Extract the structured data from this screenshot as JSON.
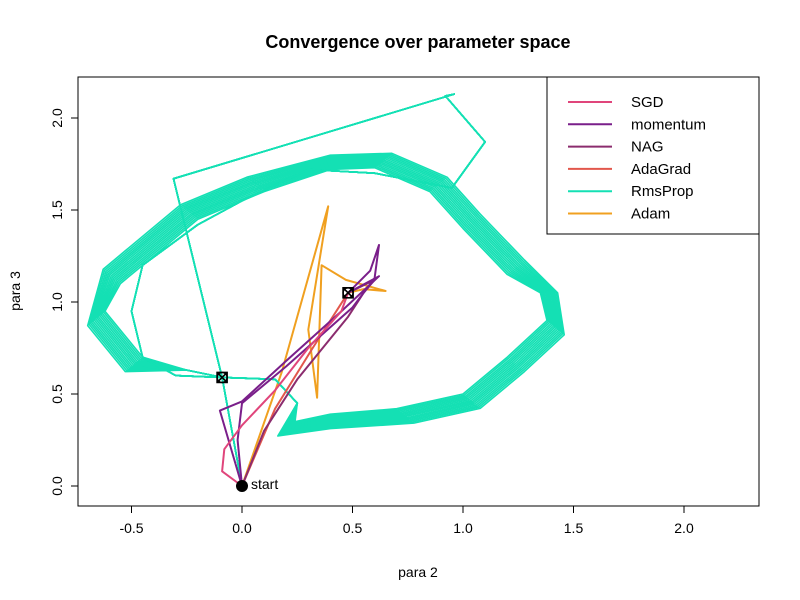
{
  "chart_data": {
    "type": "line",
    "title": "Convergence over parameter space",
    "xlabel": "para 2",
    "ylabel": "para 3",
    "xlim": [
      -0.75,
      2.34
    ],
    "ylim": [
      -0.09,
      2.27
    ],
    "x_ticks": [
      "-0.5",
      "0.0",
      "0.5",
      "1.0",
      "1.5",
      "2.0"
    ],
    "y_ticks": [
      "0.0",
      "0.5",
      "1.0",
      "1.5",
      "2.0"
    ],
    "legend_position": "top-right",
    "start_label": "start",
    "start_point": [
      0.0,
      0.0
    ],
    "markers": [
      [
        -0.09,
        0.59
      ],
      [
        0.48,
        1.05
      ]
    ],
    "series": [
      {
        "name": "SGD",
        "color": "#E0457B",
        "x": [
          0.0,
          -0.09,
          -0.08,
          0.0,
          0.15,
          0.3,
          0.45,
          0.48
        ],
        "y": [
          0.0,
          0.08,
          0.2,
          0.33,
          0.52,
          0.75,
          0.95,
          1.05
        ]
      },
      {
        "name": "momentum",
        "color": "#7A1F8A",
        "x": [
          0.0,
          -0.02,
          0.0,
          0.2,
          0.5,
          0.6,
          0.62,
          0.58,
          0.48
        ],
        "y": [
          0.0,
          0.25,
          0.45,
          0.65,
          0.97,
          1.13,
          1.31,
          1.17,
          1.05
        ],
        "x2": [
          0.0,
          -0.1,
          0.0,
          0.2,
          0.45,
          0.62,
          0.48
        ],
        "y2": [
          0.0,
          0.41,
          0.46,
          0.68,
          0.95,
          1.14,
          1.05
        ]
      },
      {
        "name": "NAG",
        "color": "#8B2C6E",
        "x": [
          0.0,
          0.1,
          0.25,
          0.48,
          0.55,
          0.6,
          0.48
        ],
        "y": [
          0.0,
          0.3,
          0.58,
          0.92,
          1.05,
          1.12,
          1.05
        ]
      },
      {
        "name": "AdaGrad",
        "color": "#E2574C",
        "x": [
          0.0,
          0.15,
          0.32,
          0.48
        ],
        "y": [
          0.0,
          0.42,
          0.75,
          1.05
        ]
      },
      {
        "name": "RmsProp",
        "color": "#14E0B4",
        "x": [
          0.0,
          -0.09,
          -0.25,
          -0.45,
          -0.62,
          -0.55,
          -0.45,
          -0.2,
          0.1,
          0.4,
          0.6,
          0.85,
          1.0,
          1.2,
          1.35,
          1.38,
          1.2,
          1.0,
          0.7,
          0.4,
          0.24,
          0.25,
          0.15,
          -0.09,
          -0.3,
          -0.45,
          -0.5,
          -0.45,
          -0.2,
          0.0,
          0.3,
          0.6,
          0.95,
          1.1,
          0.92,
          0.96,
          -0.31,
          -0.09,
          0.0
        ],
        "y": [
          0.0,
          0.59,
          0.63,
          0.7,
          0.95,
          1.1,
          1.2,
          1.45,
          1.6,
          1.72,
          1.73,
          1.6,
          1.4,
          1.15,
          1.05,
          0.9,
          0.7,
          0.5,
          0.42,
          0.39,
          0.35,
          0.45,
          0.58,
          0.59,
          0.6,
          0.7,
          0.95,
          1.2,
          1.42,
          1.55,
          1.72,
          1.7,
          1.62,
          1.87,
          2.12,
          2.13,
          1.67,
          0.59,
          0.0
        ]
      },
      {
        "name": "Adam",
        "color": "#F0A020",
        "x": [
          0.0,
          0.18,
          0.39,
          0.3,
          0.34,
          0.36,
          0.47,
          0.65,
          0.55,
          0.48
        ],
        "y": [
          0.0,
          0.62,
          1.52,
          0.85,
          0.48,
          1.2,
          1.12,
          1.06,
          1.07,
          1.05
        ]
      }
    ]
  }
}
